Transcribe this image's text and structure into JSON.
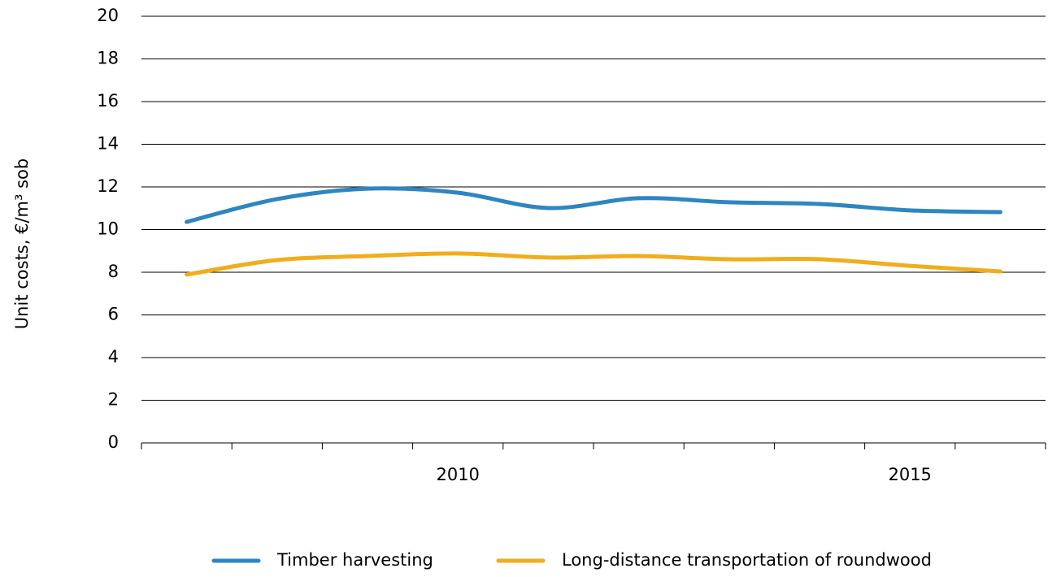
{
  "chart_data": {
    "type": "line",
    "y_label": "Unit costs,  €/m³ sob",
    "categories": [
      null,
      null,
      null,
      "2010",
      null,
      null,
      null,
      null,
      "2015",
      null
    ],
    "series": [
      {
        "name": "Timber harvesting",
        "color": "#2e86c1",
        "values": [
          10.36,
          11.43,
          11.92,
          11.73,
          11.01,
          11.47,
          11.28,
          11.2,
          10.9,
          10.82
        ]
      },
      {
        "name": "Long-distance transportation of roundwood",
        "color": "#f0ad1c",
        "values": [
          7.89,
          8.57,
          8.76,
          8.88,
          8.69,
          8.76,
          8.61,
          8.61,
          8.3,
          8.04
        ]
      }
    ],
    "ylim": [
      0,
      20
    ],
    "yticks": [
      0,
      2,
      4,
      6,
      8,
      10,
      12,
      14,
      16,
      18,
      20
    ],
    "grid": true,
    "legend": "bottom"
  }
}
